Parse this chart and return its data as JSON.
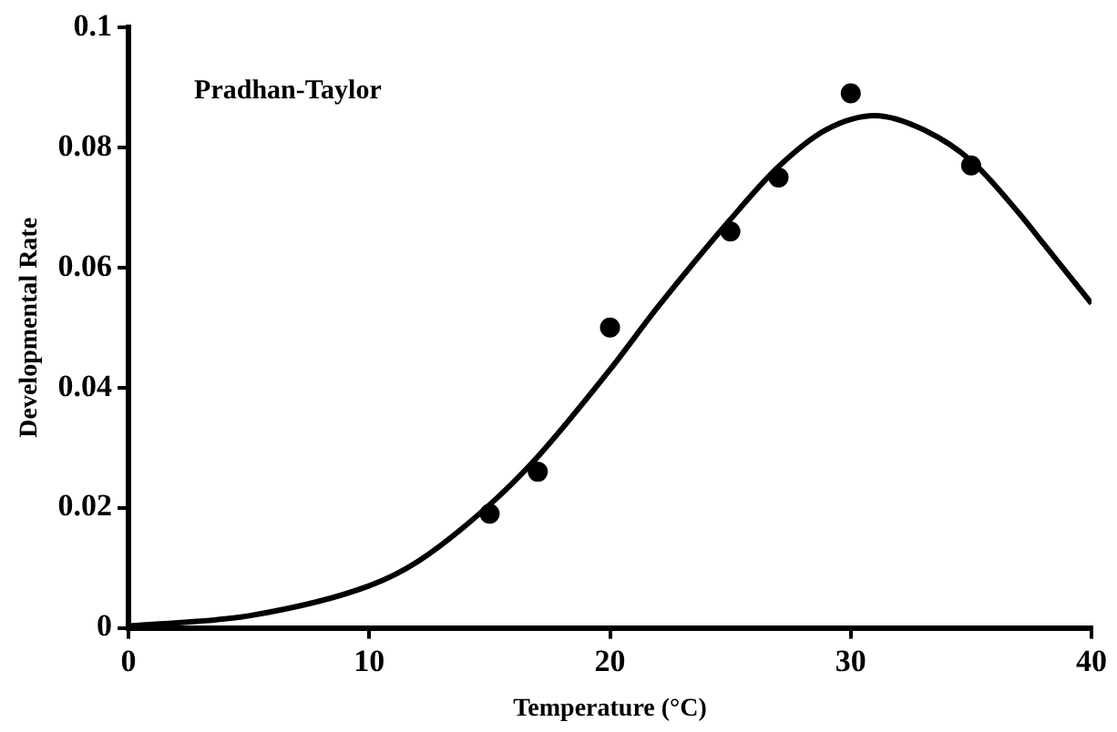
{
  "chart_data": {
    "type": "scatter",
    "xlabel": "Temperature (°C)",
    "ylabel": "Developmental Rate",
    "annotations": [
      "Pradhan-Taylor"
    ],
    "xlim": [
      0,
      40
    ],
    "xticks": [
      0,
      10,
      20,
      30,
      40
    ],
    "ylim": [
      0,
      0.1
    ],
    "yticks": [
      0,
      0.02,
      0.04,
      0.06,
      0.08,
      0.1
    ],
    "grid": false,
    "legend": false,
    "series": [
      {
        "color": "#000000",
        "marker": "circle",
        "x": [
          15,
          17,
          20,
          25,
          27,
          30,
          35
        ],
        "values": [
          0.019,
          0.026,
          0.05,
          0.066,
          0.075,
          0.089,
          0.077
        ]
      },
      {
        "type": "line",
        "color": "#000000",
        "marker": "none",
        "line_style": "solid",
        "x": [
          0,
          5,
          10,
          12,
          15,
          17,
          20,
          22,
          25,
          27,
          29,
          31,
          33,
          35,
          37,
          38,
          40
        ],
        "values": [
          0.0003,
          0.002,
          0.007,
          0.011,
          0.0205,
          0.0285,
          0.043,
          0.0535,
          0.068,
          0.0768,
          0.083,
          0.0853,
          0.083,
          0.0778,
          0.069,
          0.064,
          0.054
        ]
      }
    ]
  }
}
